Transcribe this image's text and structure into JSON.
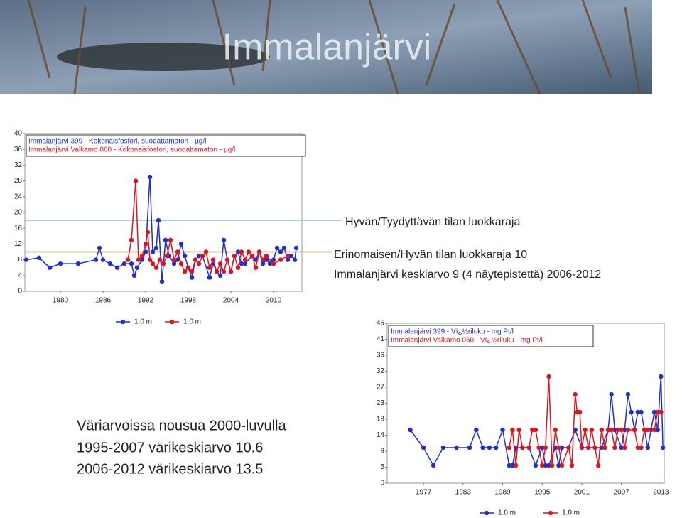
{
  "slide": {
    "title": "Immalanjärvi",
    "notes": [
      "Väriarvoissa nousua 2000-luvulla",
      "1995-2007 värikeskiarvo 10.6",
      "2006-2012 värikeskiarvo 13.5"
    ]
  },
  "chart_data": [
    {
      "type": "line",
      "xlim": [
        1975,
        2014
      ],
      "xticks": [
        1980,
        1986,
        1992,
        1998,
        2004,
        2010
      ],
      "ylim": [
        0,
        40
      ],
      "yticks": [
        0,
        4,
        8,
        12,
        16,
        20,
        24,
        28,
        32,
        36,
        40
      ],
      "reference_lines": [
        {
          "label": "Hyvän/Tyydyttävän tilan luokkaraja",
          "value": 18,
          "color": "#9fc5e8"
        },
        {
          "label": "Erinomaisen/Hyvän tilan luokkaraja 10",
          "value": 10,
          "color": "#a89660"
        }
      ],
      "annotation": "Immalanjärvi keskiarvo 9 (4 näytepistettä) 2006-2012",
      "series": [
        {
          "name": "Immalanjärvi 399 - Kokonaisfosfori, suodattamaton - µg/l",
          "legend_label": "1.0 m",
          "color": "#1f2fd0",
          "x": [
            1975.2,
            1977,
            1978.5,
            1980,
            1982.5,
            1985,
            1985.5,
            1986,
            1987,
            1988,
            1989,
            1990,
            1990.4,
            1990.8,
            1991.5,
            1992,
            1992.6,
            1993,
            1993.5,
            1993.8,
            1994.3,
            1994.8,
            1995.3,
            1996,
            1996.5,
            1997,
            1997.5,
            1998,
            1998.5,
            1999,
            1999.5,
            2000,
            2001,
            2001.5,
            2002,
            2002.5,
            2003,
            2003.5,
            2004,
            2004.5,
            2005,
            2005.5,
            2006,
            2007,
            2007.5,
            2008,
            2008.5,
            2009,
            2009.5,
            2010,
            2010.5,
            2011,
            2011.5,
            2012,
            2012.5,
            2013,
            2013.2
          ],
          "values": [
            8,
            8.5,
            6,
            7,
            7,
            8,
            11,
            8,
            7,
            6,
            7,
            7,
            4,
            6,
            8,
            10,
            29,
            10,
            11,
            18,
            2.5,
            13,
            9,
            7,
            8,
            12,
            9,
            6,
            3.5,
            8,
            9,
            9,
            3.5,
            7,
            5,
            4,
            13,
            8,
            5,
            9,
            10,
            7,
            7,
            9,
            8,
            10,
            7,
            8,
            7,
            8,
            11,
            10,
            11,
            8,
            9,
            8,
            11
          ]
        },
        {
          "name": "Immalanjärvi Valkamo 060 - Kokonaisfosfori, suodattamaton - µg/l",
          "legend_label": "1.0 m",
          "color": "#e0141c",
          "x": [
            1989.5,
            1990,
            1990.6,
            1991,
            1991.5,
            1992,
            1992.3,
            1992.6,
            1993,
            1993.5,
            1994,
            1994.5,
            1995,
            1995.5,
            1996,
            1996.5,
            1997,
            1997.5,
            1998,
            1998.5,
            1999,
            1999.5,
            2000,
            2000.5,
            2001,
            2001.5,
            2002,
            2002.5,
            2003,
            2003.5,
            2004,
            2004.5,
            2005,
            2005.5,
            2006,
            2006.5,
            2007,
            2007.5,
            2008,
            2008.5,
            2009,
            2010,
            2011,
            2012
          ],
          "values": [
            8,
            13,
            28,
            8,
            9,
            12,
            15,
            8,
            7,
            6,
            8,
            7,
            9,
            13,
            8,
            10,
            7,
            5,
            6,
            5,
            8,
            7,
            9,
            10,
            6,
            8,
            5,
            7,
            5,
            8,
            5,
            9,
            6,
            10,
            8,
            10,
            9,
            6,
            10,
            8,
            9,
            7,
            8,
            9
          ]
        }
      ]
    },
    {
      "type": "line",
      "xlim": [
        1971.5,
        2013.5
      ],
      "xticks": [
        1977,
        1983,
        1989,
        1995,
        2001,
        2007,
        2013
      ],
      "ylim": [
        0,
        45
      ],
      "yticks": [
        0,
        {
          "value": 4.5,
          "label": "5"
        },
        9,
        {
          "value": 13.5,
          "label": "14"
        },
        18,
        {
          "value": 22.5,
          "label": "23"
        },
        27,
        {
          "value": 31.5,
          "label": "32"
        },
        36,
        {
          "value": 40.5,
          "label": "41"
        },
        45
      ],
      "series": [
        {
          "name": "Immalanjärvi 399 - Vï¿½riluku - mg Pt/l",
          "legend_label": "1.0 m",
          "color": "#1f2fd0",
          "x": [
            1975,
            1977,
            1978.5,
            1980,
            1982,
            1984,
            1985,
            1986,
            1987,
            1988,
            1989,
            1990,
            1990.5,
            1991,
            1992,
            1993,
            1994,
            1995,
            1995.5,
            1996,
            1997,
            1997.5,
            1998,
            1999,
            2000,
            2001,
            2002,
            2003,
            2004,
            2005,
            2005.5,
            2006,
            2007,
            2007.5,
            2008,
            2008.5,
            2009,
            2009.5,
            2010,
            2010.5,
            2011,
            2011.5,
            2012,
            2012.5,
            2013,
            2013.3
          ],
          "values": [
            15,
            10,
            5,
            10,
            10,
            10,
            15,
            10,
            10,
            10,
            15,
            5,
            5,
            10,
            10,
            10,
            5,
            10,
            5,
            5,
            10,
            5,
            10,
            10,
            15,
            10,
            10,
            10,
            10,
            15,
            25,
            15,
            10,
            15,
            25,
            20,
            15,
            20,
            20,
            15,
            10,
            15,
            20,
            15,
            30,
            10
          ]
        },
        {
          "name": "Immalanjärvi Valkamo 060 - Vï¿½riluku - mg Pt/l",
          "legend_label": "1.0 m",
          "color": "#e0141c",
          "x": [
            1990,
            1990.5,
            1991,
            1991.5,
            1992,
            1993,
            1993.5,
            1994,
            1994.5,
            1995,
            1995.5,
            1996,
            1996.5,
            1997,
            1997.5,
            1998,
            1999,
            1999.5,
            2000,
            2000.3,
            2000.7,
            2001,
            2001.5,
            2002,
            2002.5,
            2003,
            2003.5,
            2004,
            2004.5,
            2005,
            2005.5,
            2006,
            2006.5,
            2007,
            2007.5,
            2008,
            2009,
            2009.5,
            2010,
            2010.5,
            2011,
            2012,
            2012.5,
            2013
          ],
          "values": [
            10,
            15,
            5,
            15,
            10,
            10,
            15,
            15,
            10,
            5,
            10,
            30,
            5,
            15,
            10,
            5,
            10,
            5,
            25,
            20,
            20,
            10,
            15,
            10,
            15,
            10,
            5,
            15,
            10,
            15,
            15,
            10,
            15,
            15,
            10,
            15,
            15,
            10,
            10,
            15,
            15,
            15,
            20,
            20
          ]
        }
      ]
    }
  ]
}
